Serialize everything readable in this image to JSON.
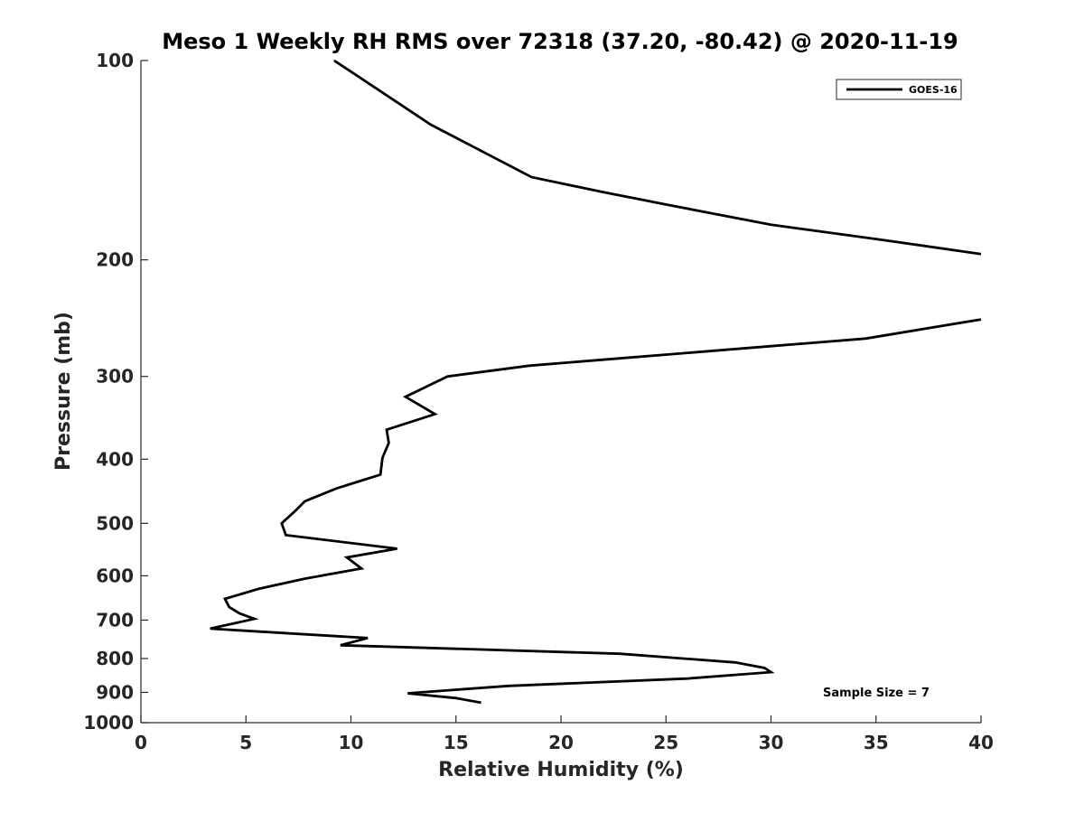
{
  "chart_data": {
    "type": "line",
    "title": "Meso 1 Weekly RH RMS over 72318 (37.20, -80.42) @ 2020-11-19",
    "xlabel": "Relative Humidity (%)",
    "ylabel": "Pressure (mb)",
    "xlim": [
      0,
      40
    ],
    "ylim": [
      1000,
      100
    ],
    "y_scale": "log",
    "y_reversed": true,
    "x_ticks": [
      "0",
      "5",
      "10",
      "15",
      "20",
      "25",
      "30",
      "35",
      "40"
    ],
    "y_ticks": [
      "100",
      "200",
      "300",
      "400",
      "500",
      "600",
      "700",
      "800",
      "900",
      "1000"
    ],
    "grid": false,
    "legend_position": "top-right",
    "annotation": "Sample Size = 7",
    "colors": {
      "series": "#000000",
      "axes": "#262626"
    },
    "series": [
      {
        "name": "GOES-16",
        "points": [
          [
            9.2,
            100
          ],
          [
            13.8,
            125
          ],
          [
            18.6,
            150
          ],
          [
            22.0,
            158
          ],
          [
            25.0,
            165
          ],
          [
            30.0,
            177
          ],
          [
            35.0,
            186
          ],
          [
            40.0,
            196
          ],
          null,
          [
            40.0,
            246
          ],
          [
            34.5,
            263
          ],
          [
            30.0,
            270
          ],
          [
            22.0,
            283
          ],
          [
            18.5,
            289
          ],
          [
            14.6,
            300
          ],
          [
            12.6,
            322
          ],
          [
            14.0,
            342
          ],
          [
            11.7,
            361
          ],
          [
            11.8,
            378
          ],
          [
            11.5,
            398
          ],
          [
            11.4,
            422
          ],
          [
            9.3,
            443
          ],
          [
            7.8,
            463
          ],
          [
            7.4,
            477
          ],
          [
            6.7,
            500
          ],
          [
            6.9,
            521
          ],
          [
            12.2,
            546
          ],
          [
            9.8,
            563
          ],
          [
            10.5,
            585
          ],
          [
            7.8,
            606
          ],
          [
            5.6,
            628
          ],
          [
            4.0,
            650
          ],
          [
            4.2,
            669
          ],
          [
            4.7,
            684
          ],
          [
            5.4,
            697
          ],
          [
            3.3,
            721
          ],
          [
            10.8,
            745
          ],
          [
            9.5,
            764
          ],
          [
            22.8,
            787
          ],
          [
            28.3,
            811
          ],
          [
            29.7,
            827
          ],
          [
            30.0,
            839
          ],
          [
            26.0,
            858
          ],
          [
            17.5,
            880
          ],
          [
            12.7,
            903
          ],
          [
            15.0,
            918
          ],
          [
            16.2,
            933
          ]
        ]
      }
    ]
  }
}
